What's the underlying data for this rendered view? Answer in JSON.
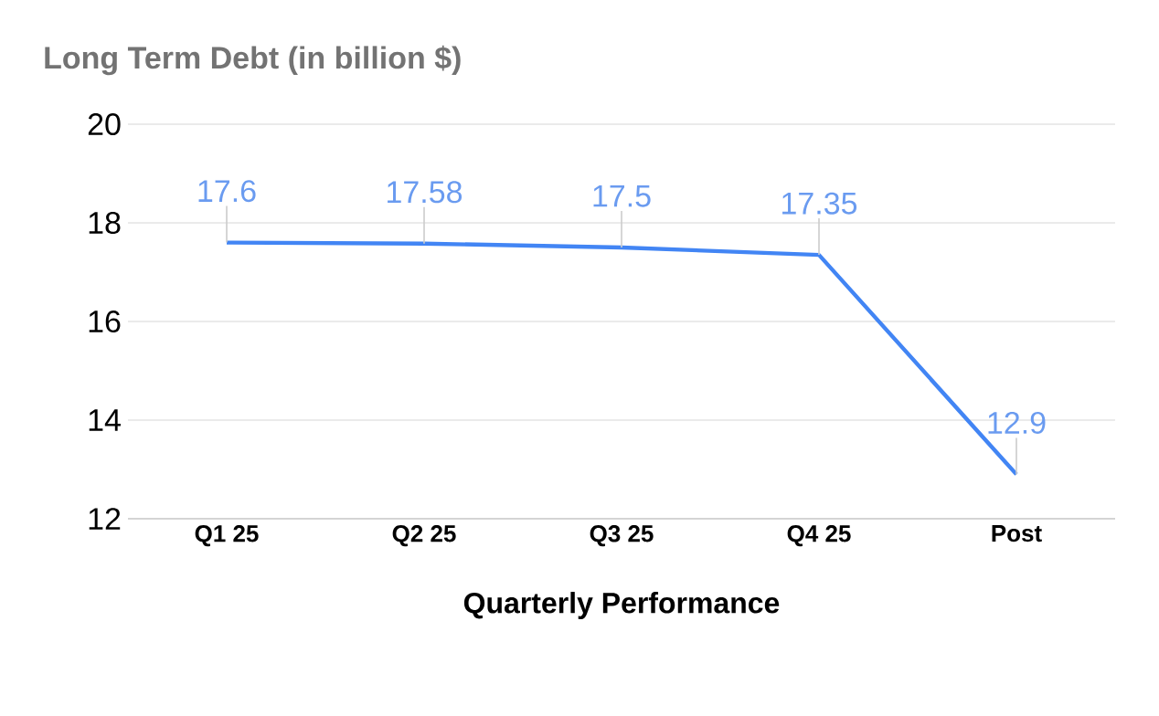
{
  "chart_data": {
    "type": "line",
    "title": "Long Term Debt (in billion $)",
    "xlabel": "Quarterly Performance",
    "categories": [
      "Q1 25",
      "Q2 25",
      "Q3 25",
      "Q4 25",
      "Post"
    ],
    "values": [
      17.6,
      17.58,
      17.5,
      17.35,
      12.9
    ],
    "color": "#4285f4",
    "ylim": [
      12,
      20
    ],
    "yticks": [
      12,
      14,
      16,
      18,
      20
    ],
    "grid": "y",
    "data_labels": true
  }
}
